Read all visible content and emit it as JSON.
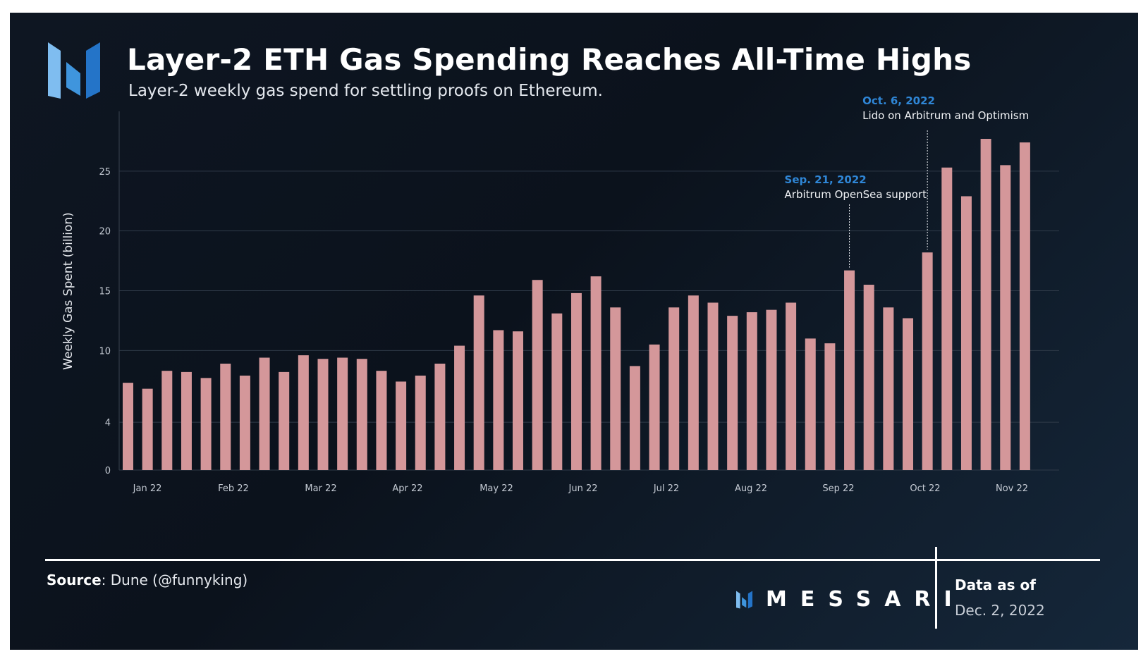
{
  "header": {
    "title": "Layer-2 ETH Gas Spending Reaches All-Time Highs",
    "subtitle": "Layer-2 weekly gas spend for settling proofs on Ethereum."
  },
  "colors": {
    "bar": "#d4979a",
    "annotation_date": "#2f86d6",
    "logo_light": "#6fb6ec",
    "logo_dark": "#2b7fd0"
  },
  "chart_data": {
    "type": "bar",
    "ylabel": "Weekly Gas Spent (billion)",
    "ylim": [
      0,
      30
    ],
    "yticks": [
      0,
      4,
      10,
      15,
      20,
      25
    ],
    "grid": true,
    "xtick_labels": [
      "Jan 22",
      "Feb 22",
      "Mar 22",
      "Apr 22",
      "May 22",
      "Jun 22",
      "Jul 22",
      "Aug 22",
      "Sep 22",
      "Oct 22",
      "Nov 22"
    ],
    "series": [
      {
        "values": [
          7.3,
          6.8,
          8.3,
          8.2,
          7.7,
          8.9,
          7.9,
          9.4,
          8.2,
          9.6,
          9.3,
          9.4,
          9.3,
          8.3,
          7.4,
          7.9,
          8.9,
          10.4,
          14.6,
          11.7,
          11.6,
          15.9,
          13.1,
          14.8,
          16.2,
          13.6,
          8.7,
          10.5,
          13.6,
          14.6,
          14.0,
          12.9,
          13.2,
          13.4,
          14.0,
          11.0,
          10.6,
          16.7,
          15.5,
          13.6,
          12.7,
          18.2,
          25.3,
          22.9,
          27.7,
          25.5,
          27.4
        ]
      }
    ],
    "annotations": [
      {
        "bar_index": 37,
        "date": "Sep. 21, 2022",
        "text": "Arbitrum OpenSea support"
      },
      {
        "bar_index": 41,
        "date": "Oct. 6, 2022",
        "text": "Lido on Arbitrum and Optimism"
      }
    ]
  },
  "footer": {
    "source_label": "Source",
    "source_text": ": Dune (@funnyking)",
    "brand": "MESSARI",
    "as_of_label": "Data as of",
    "as_of_date": "Dec. 2, 2022"
  }
}
